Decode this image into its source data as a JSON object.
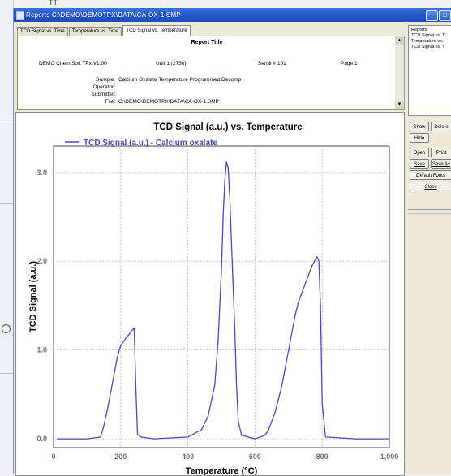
{
  "background_app": {
    "top_mark": "TT"
  },
  "window": {
    "title": "Reports   C:\\DEMO\\DEMOTPX\\DATA\\CA-OX-1.SMP"
  },
  "tabs": [
    {
      "label": "TCD Signal vs. Time",
      "active": false
    },
    {
      "label": "Temperature vs. Time",
      "active": false
    },
    {
      "label": "TCD Signal vs. Temperature",
      "active": true
    }
  ],
  "report_header": {
    "title": "Report Title",
    "software": "DEMO ChemiSoft TPx V1.00",
    "unit": "Unit 1 (2750)",
    "serial": "Serial # 101",
    "page": "Page 1",
    "fields": [
      {
        "label": "Sample:",
        "value": "Calcium Oxalate Temperature Programmed Decomp"
      },
      {
        "label": "Operator:",
        "value": ""
      },
      {
        "label": "Submitter:",
        "value": ""
      },
      {
        "label": "File:",
        "value": "C:\\DEMO\\DEMOTPX\\DATA\\CA-OX-1.SMP"
      }
    ]
  },
  "side_panel": {
    "reports_heading": "Reports",
    "reports_items": [
      "TCD Signal vs. Ti",
      "Temperature vs.",
      "TCD Signal vs. T"
    ],
    "buttons": {
      "show": "Show",
      "delete": "Delete",
      "hide": "Hide",
      "open": "Open",
      "print": "Print",
      "save": "Save",
      "save_as": "Save As",
      "default_fonts": "Default Fonts",
      "close": "Close"
    }
  },
  "chart_data": {
    "type": "line",
    "title": "TCD Signal (a.u.) vs. Temperature",
    "xlabel": "Temperature (°C)",
    "ylabel": "TCD Signal (a.u.)",
    "xlim": [
      0,
      1000
    ],
    "ylim": [
      -0.1,
      3.3
    ],
    "x_ticks": [
      0,
      200,
      400,
      600,
      800,
      1000
    ],
    "x_tick_labels": [
      "0",
      "200",
      "400",
      "600",
      "800",
      "1,000"
    ],
    "y_ticks": [
      0.0,
      1.0,
      2.0,
      3.0
    ],
    "y_tick_labels": [
      "0.0",
      "1.0",
      "2.0",
      "3.0"
    ],
    "grid": true,
    "legend_position": "top-left",
    "series": [
      {
        "name": "TCD Signal (a.u.) - Calcium oxalate",
        "color": "#4a4ab0",
        "x": [
          10,
          100,
          140,
          150,
          160,
          170,
          180,
          190,
          200,
          215,
          230,
          240,
          245,
          250,
          260,
          300,
          400,
          440,
          460,
          480,
          490,
          500,
          505,
          510,
          515,
          520,
          525,
          530,
          540,
          545,
          550,
          560,
          600,
          630,
          640,
          650,
          660,
          670,
          680,
          690,
          700,
          710,
          720,
          730,
          740,
          750,
          760,
          770,
          780,
          785,
          790,
          795,
          800,
          810,
          900,
          1000
        ],
        "y": [
          0.0,
          0.0,
          0.02,
          0.15,
          0.32,
          0.52,
          0.72,
          0.92,
          1.05,
          1.13,
          1.2,
          1.25,
          0.6,
          0.05,
          0.02,
          0.0,
          0.02,
          0.1,
          0.25,
          0.6,
          1.1,
          1.9,
          2.5,
          2.9,
          3.12,
          3.05,
          2.7,
          2.2,
          1.2,
          0.6,
          0.2,
          0.04,
          0.0,
          0.04,
          0.1,
          0.2,
          0.3,
          0.45,
          0.6,
          0.8,
          1.0,
          1.2,
          1.4,
          1.55,
          1.65,
          1.75,
          1.85,
          1.95,
          2.02,
          2.05,
          2.0,
          1.5,
          0.4,
          0.02,
          0.0,
          0.0
        ]
      }
    ]
  }
}
